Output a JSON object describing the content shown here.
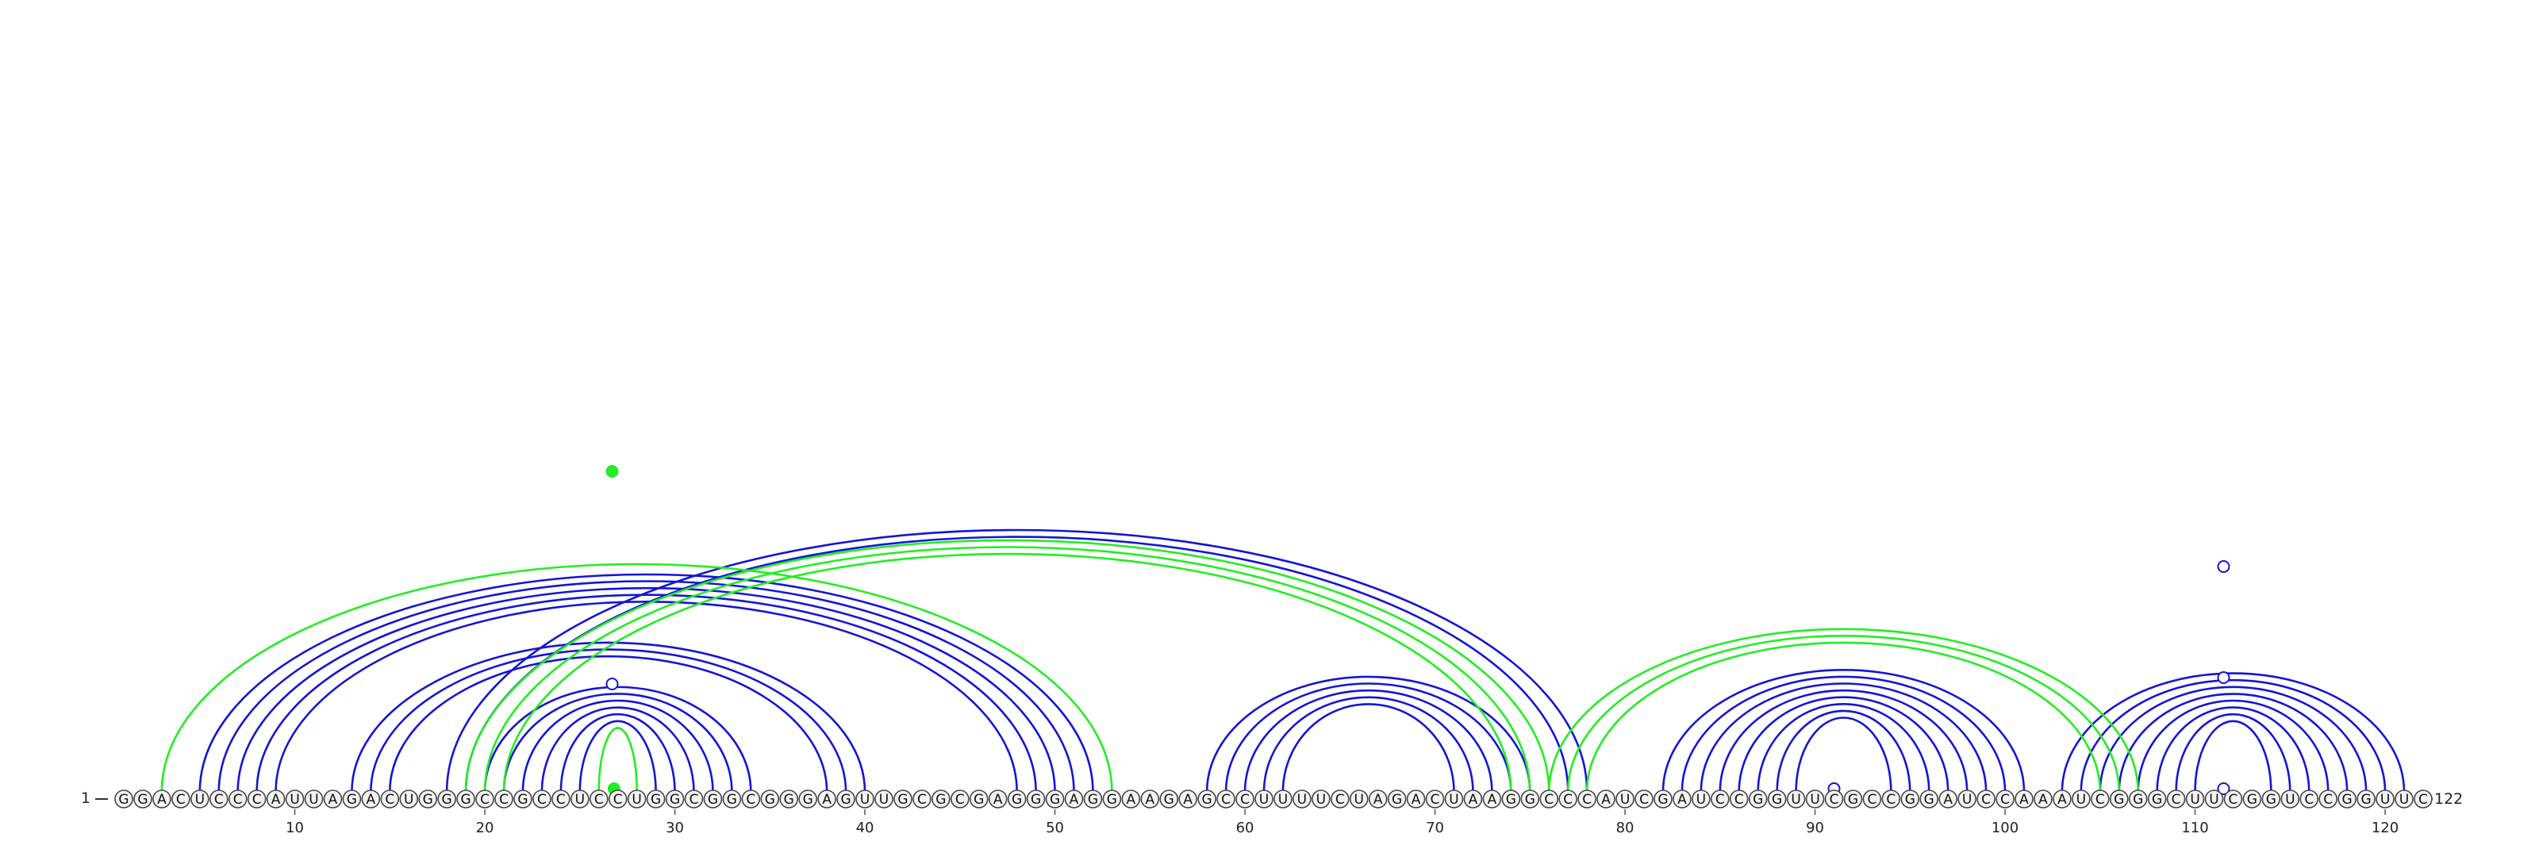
{
  "sequence": "GGACUCCCAUUAGACUGGGCCGCCUCCUGGCGGCGGGAGUUGCGCGAGGGAGGAAGAGCCUUUUCUAGACUAAGGCCCAUCGAUCCGGUUCGCCGGAUCCAAAUCGGGCUUCGGUCCGGUUC",
  "start_label": "1",
  "end_label": "122",
  "tick_labels": [
    "10",
    "20",
    "30",
    "40",
    "50",
    "60",
    "70",
    "80",
    "90",
    "100",
    "110",
    "120"
  ],
  "colors": {
    "blue": "#1515d6",
    "green": "#22ee22",
    "axis": "#555555"
  },
  "pairs_blue": [
    [
      5,
      52
    ],
    [
      6,
      51
    ],
    [
      7,
      50
    ],
    [
      8,
      49
    ],
    [
      9,
      48
    ],
    [
      13,
      40
    ],
    [
      14,
      39
    ],
    [
      15,
      38
    ],
    [
      18,
      78
    ],
    [
      19,
      77
    ],
    [
      20,
      34
    ],
    [
      21,
      33
    ],
    [
      22,
      32
    ],
    [
      23,
      31
    ],
    [
      24,
      30
    ],
    [
      25,
      29
    ],
    [
      58,
      75
    ],
    [
      59,
      74
    ],
    [
      60,
      73
    ],
    [
      61,
      72
    ],
    [
      62,
      71
    ],
    [
      82,
      101
    ],
    [
      83,
      100
    ],
    [
      84,
      99
    ],
    [
      85,
      98
    ],
    [
      86,
      97
    ],
    [
      87,
      96
    ],
    [
      88,
      95
    ],
    [
      89,
      94
    ],
    [
      103,
      121
    ],
    [
      104,
      120
    ],
    [
      105,
      119
    ],
    [
      106,
      118
    ],
    [
      107,
      117
    ],
    [
      108,
      116
    ],
    [
      109,
      115
    ],
    [
      110,
      114
    ]
  ],
  "pairs_green": [
    [
      3,
      53
    ],
    [
      19,
      76
    ],
    [
      20,
      75
    ],
    [
      21,
      74
    ],
    [
      26,
      28
    ],
    [
      76,
      107
    ],
    [
      77,
      106
    ],
    [
      78,
      105
    ]
  ],
  "markers": [
    {
      "x": 26.7,
      "level": 1.0,
      "color": "green",
      "filled": true
    },
    {
      "x": 26.7,
      "level": 0.33,
      "color": "blue",
      "filled": false
    },
    {
      "x": 26.8,
      "level": 0.0,
      "color": "green",
      "filled": true
    },
    {
      "x": 91.0,
      "level": 0.0,
      "color": "blue",
      "filled": false
    },
    {
      "x": 111.5,
      "level": 0.0,
      "color": "blue",
      "filled": false
    },
    {
      "x": 111.5,
      "level": 0.35,
      "color": "blue",
      "filled": false
    },
    {
      "x": 111.5,
      "level": 0.7,
      "color": "blue",
      "filled": false
    }
  ]
}
